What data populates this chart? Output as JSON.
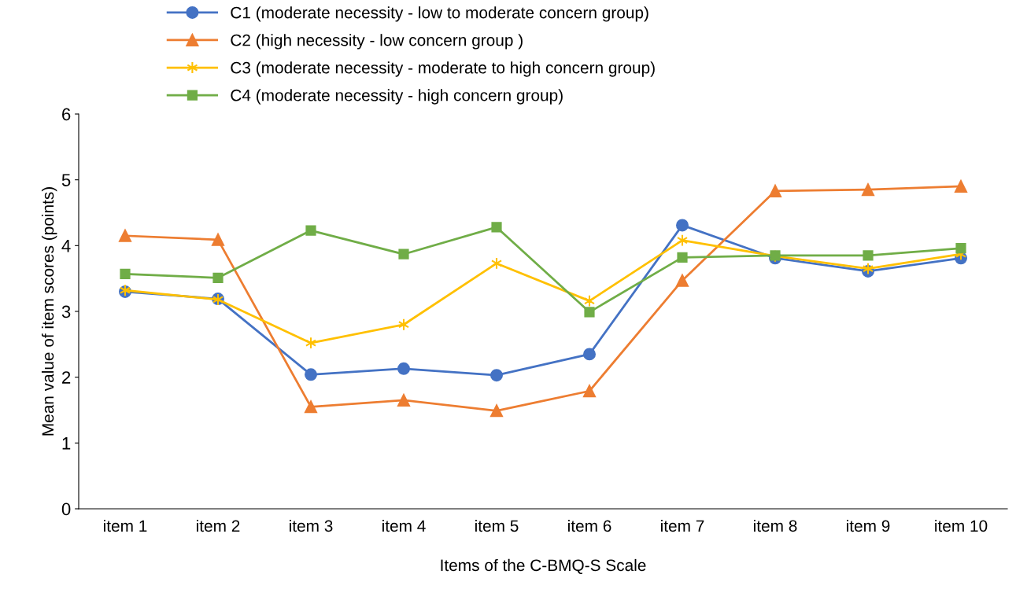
{
  "chart_data": {
    "type": "line",
    "xlabel": "Items of the C-BMQ-S Scale",
    "ylabel": "Mean value of item scores (points)",
    "categories": [
      "item 1",
      "item 2",
      "item 3",
      "item 4",
      "item 5",
      "item 6",
      "item 7",
      "item 8",
      "item 9",
      "item 10"
    ],
    "ylim": [
      0,
      6
    ],
    "yticks": [
      0,
      1,
      2,
      3,
      4,
      5,
      6
    ],
    "grid": false,
    "legend": "top",
    "line_style": "solid",
    "series": [
      {
        "name": "C1 (moderate necessity - low to moderate concern group)",
        "color": "#4472c4",
        "marker": "circle",
        "values": [
          3.3,
          3.19,
          2.04,
          2.13,
          2.03,
          2.35,
          4.31,
          3.81,
          3.61,
          3.81
        ]
      },
      {
        "name": "C2 (high necessity - low concern group )",
        "color": "#ed7d31",
        "marker": "triangle",
        "values": [
          4.15,
          4.09,
          1.55,
          1.65,
          1.49,
          1.79,
          3.47,
          4.83,
          4.85,
          4.9
        ]
      },
      {
        "name": "C3 (moderate necessity - moderate to high concern group)",
        "color": "#ffc000",
        "marker": "cross",
        "values": [
          3.32,
          3.18,
          2.52,
          2.8,
          3.73,
          3.16,
          4.08,
          3.84,
          3.65,
          3.87
        ]
      },
      {
        "name": "C4 (moderate necessity - high concern group)",
        "color": "#70ad47",
        "marker": "square",
        "values": [
          3.57,
          3.51,
          4.23,
          3.87,
          4.28,
          2.99,
          3.82,
          3.85,
          3.85,
          3.96
        ]
      }
    ]
  }
}
